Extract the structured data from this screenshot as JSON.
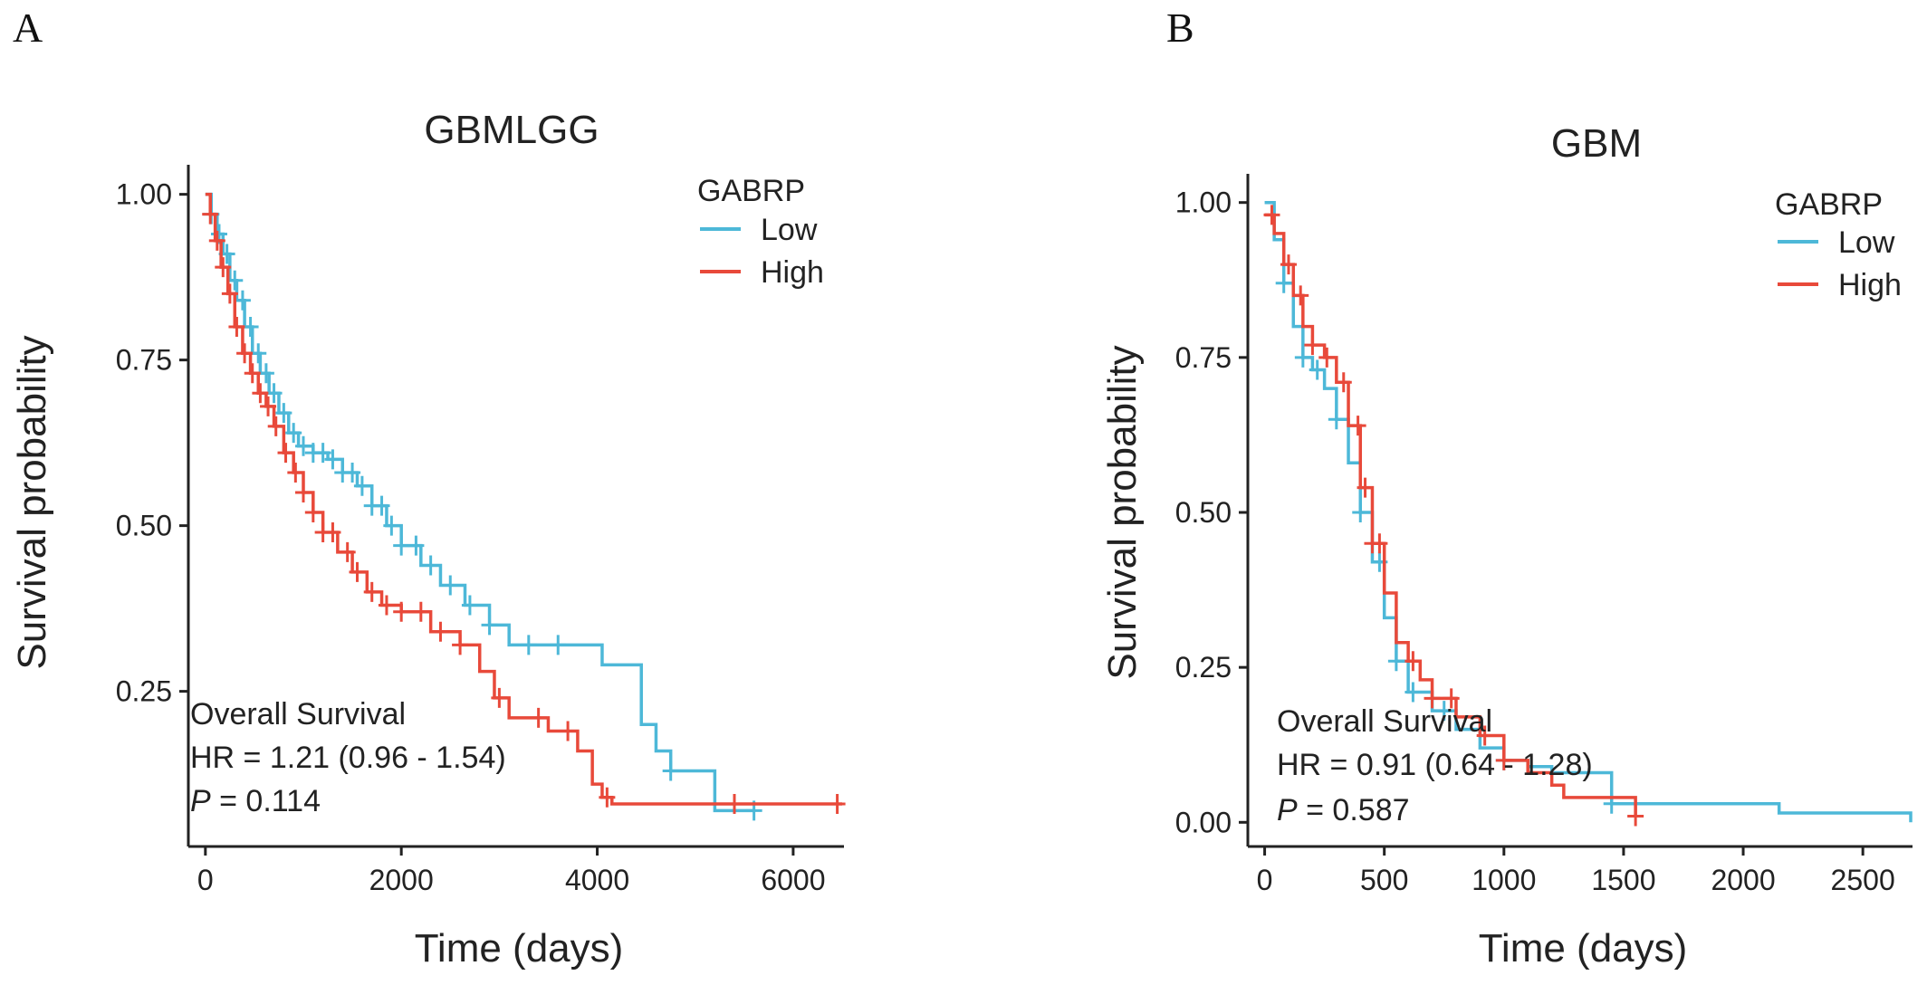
{
  "chart_data": [
    {
      "panel": "A",
      "type": "line",
      "title": "GBMLGG",
      "xlabel": "Time (days)",
      "ylabel": "Survival probability",
      "xlim": [
        -100,
        6500
      ],
      "ylim": [
        0.05,
        1.02
      ],
      "xticks": [
        0,
        2000,
        4000,
        6000
      ],
      "xtick_labels": [
        "0",
        "2000",
        "4000",
        "6000"
      ],
      "yticks": [
        0.25,
        0.5,
        0.75,
        1.0
      ],
      "ytick_labels": [
        "0.25",
        "0.50",
        "0.75",
        "1.00"
      ],
      "grid": false,
      "legend": {
        "title": "GABRP",
        "position": "top-right"
      },
      "annotation": {
        "line1": "Overall Survival",
        "line2": "HR = 1.21 (0.96 -  1.54)",
        "p_label": "P",
        "p_value": " = 0.114"
      },
      "series": [
        {
          "name": "Low",
          "color": "#4DB8D8",
          "x": [
            0,
            60,
            120,
            180,
            250,
            320,
            400,
            480,
            560,
            650,
            750,
            850,
            950,
            1100,
            1250,
            1400,
            1550,
            1700,
            1850,
            2000,
            2200,
            2400,
            2650,
            2900,
            3100,
            3400,
            3800,
            4050,
            4200,
            4450,
            4600,
            4750,
            5000,
            5200,
            5600
          ],
          "y": [
            1.0,
            0.97,
            0.94,
            0.91,
            0.87,
            0.84,
            0.8,
            0.76,
            0.73,
            0.7,
            0.67,
            0.64,
            0.62,
            0.61,
            0.6,
            0.58,
            0.56,
            0.53,
            0.5,
            0.47,
            0.44,
            0.41,
            0.38,
            0.35,
            0.32,
            0.32,
            0.32,
            0.29,
            0.29,
            0.2,
            0.16,
            0.13,
            0.13,
            0.07,
            0.07
          ],
          "censor_x": [
            60,
            140,
            220,
            300,
            380,
            460,
            540,
            620,
            700,
            800,
            900,
            1000,
            1100,
            1200,
            1300,
            1400,
            1500,
            1600,
            1700,
            1800,
            1900,
            2000,
            2150,
            2300,
            2500,
            2700,
            2900,
            3300,
            3600,
            4750,
            5600
          ]
        },
        {
          "name": "High",
          "color": "#E8493A",
          "x": [
            0,
            50,
            100,
            160,
            230,
            300,
            380,
            460,
            540,
            620,
            700,
            800,
            900,
            1000,
            1100,
            1200,
            1350,
            1500,
            1650,
            1800,
            2000,
            2300,
            2600,
            2800,
            2950,
            3100,
            3500,
            3800,
            3950,
            4050,
            4150,
            5000,
            6500
          ],
          "y": [
            1.0,
            0.97,
            0.93,
            0.89,
            0.85,
            0.8,
            0.76,
            0.73,
            0.7,
            0.68,
            0.65,
            0.61,
            0.58,
            0.55,
            0.52,
            0.49,
            0.46,
            0.43,
            0.4,
            0.38,
            0.37,
            0.34,
            0.32,
            0.28,
            0.24,
            0.21,
            0.19,
            0.16,
            0.11,
            0.09,
            0.08,
            0.08,
            0.08
          ],
          "censor_x": [
            50,
            120,
            180,
            250,
            320,
            400,
            480,
            560,
            640,
            720,
            820,
            920,
            1000,
            1100,
            1200,
            1300,
            1450,
            1550,
            1700,
            1850,
            2000,
            2200,
            2400,
            2600,
            3000,
            3400,
            3700,
            4100,
            5400,
            6450
          ]
        }
      ]
    },
    {
      "panel": "B",
      "type": "line",
      "title": "GBM",
      "xlabel": "Time (days)",
      "ylabel": "Survival probability",
      "xlim": [
        -40,
        2700
      ],
      "ylim": [
        -0.02,
        1.02
      ],
      "xticks": [
        0,
        500,
        1000,
        1500,
        2000,
        2500
      ],
      "xtick_labels": [
        "0",
        "500",
        "1000",
        "1500",
        "2000",
        "2500"
      ],
      "yticks": [
        0.0,
        0.25,
        0.5,
        0.75,
        1.0
      ],
      "ytick_labels": [
        "0.00",
        "0.25",
        "0.50",
        "0.75",
        "1.00"
      ],
      "grid": false,
      "legend": {
        "title": "GABRP",
        "position": "top-right"
      },
      "annotation": {
        "line1": "Overall Survival",
        "line2": "HR = 0.91 (0.64 -  1.28)",
        "p_label": "P",
        "p_value": " = 0.587"
      },
      "series": [
        {
          "name": "Low",
          "color": "#4DB8D8",
          "x": [
            0,
            40,
            80,
            120,
            160,
            200,
            250,
            300,
            350,
            400,
            450,
            500,
            550,
            600,
            700,
            800,
            900,
            1000,
            1100,
            1200,
            1400,
            1450,
            2100,
            2150,
            2700
          ],
          "y": [
            1.0,
            0.94,
            0.87,
            0.8,
            0.75,
            0.73,
            0.7,
            0.65,
            0.58,
            0.5,
            0.42,
            0.33,
            0.26,
            0.21,
            0.18,
            0.15,
            0.12,
            0.1,
            0.09,
            0.08,
            0.08,
            0.03,
            0.03,
            0.015,
            0.0
          ],
          "censor_x": [
            80,
            160,
            220,
            300,
            400,
            480,
            550,
            620,
            750,
            1000,
            1450
          ]
        },
        {
          "name": "High",
          "color": "#E8493A",
          "x": [
            0,
            40,
            80,
            120,
            160,
            200,
            250,
            300,
            350,
            400,
            450,
            500,
            550,
            600,
            650,
            700,
            800,
            900,
            1000,
            1100,
            1200,
            1250,
            1400,
            1550
          ],
          "y": [
            0.98,
            0.95,
            0.9,
            0.85,
            0.8,
            0.77,
            0.75,
            0.71,
            0.64,
            0.54,
            0.45,
            0.37,
            0.29,
            0.26,
            0.23,
            0.2,
            0.17,
            0.14,
            0.1,
            0.08,
            0.06,
            0.04,
            0.04,
            0.01
          ],
          "censor_x": [
            30,
            100,
            150,
            200,
            260,
            330,
            390,
            420,
            450,
            480,
            620,
            700,
            780,
            920,
            1000,
            1550
          ]
        }
      ]
    }
  ],
  "panels": {
    "a_letter": "A",
    "b_letter": "B"
  }
}
